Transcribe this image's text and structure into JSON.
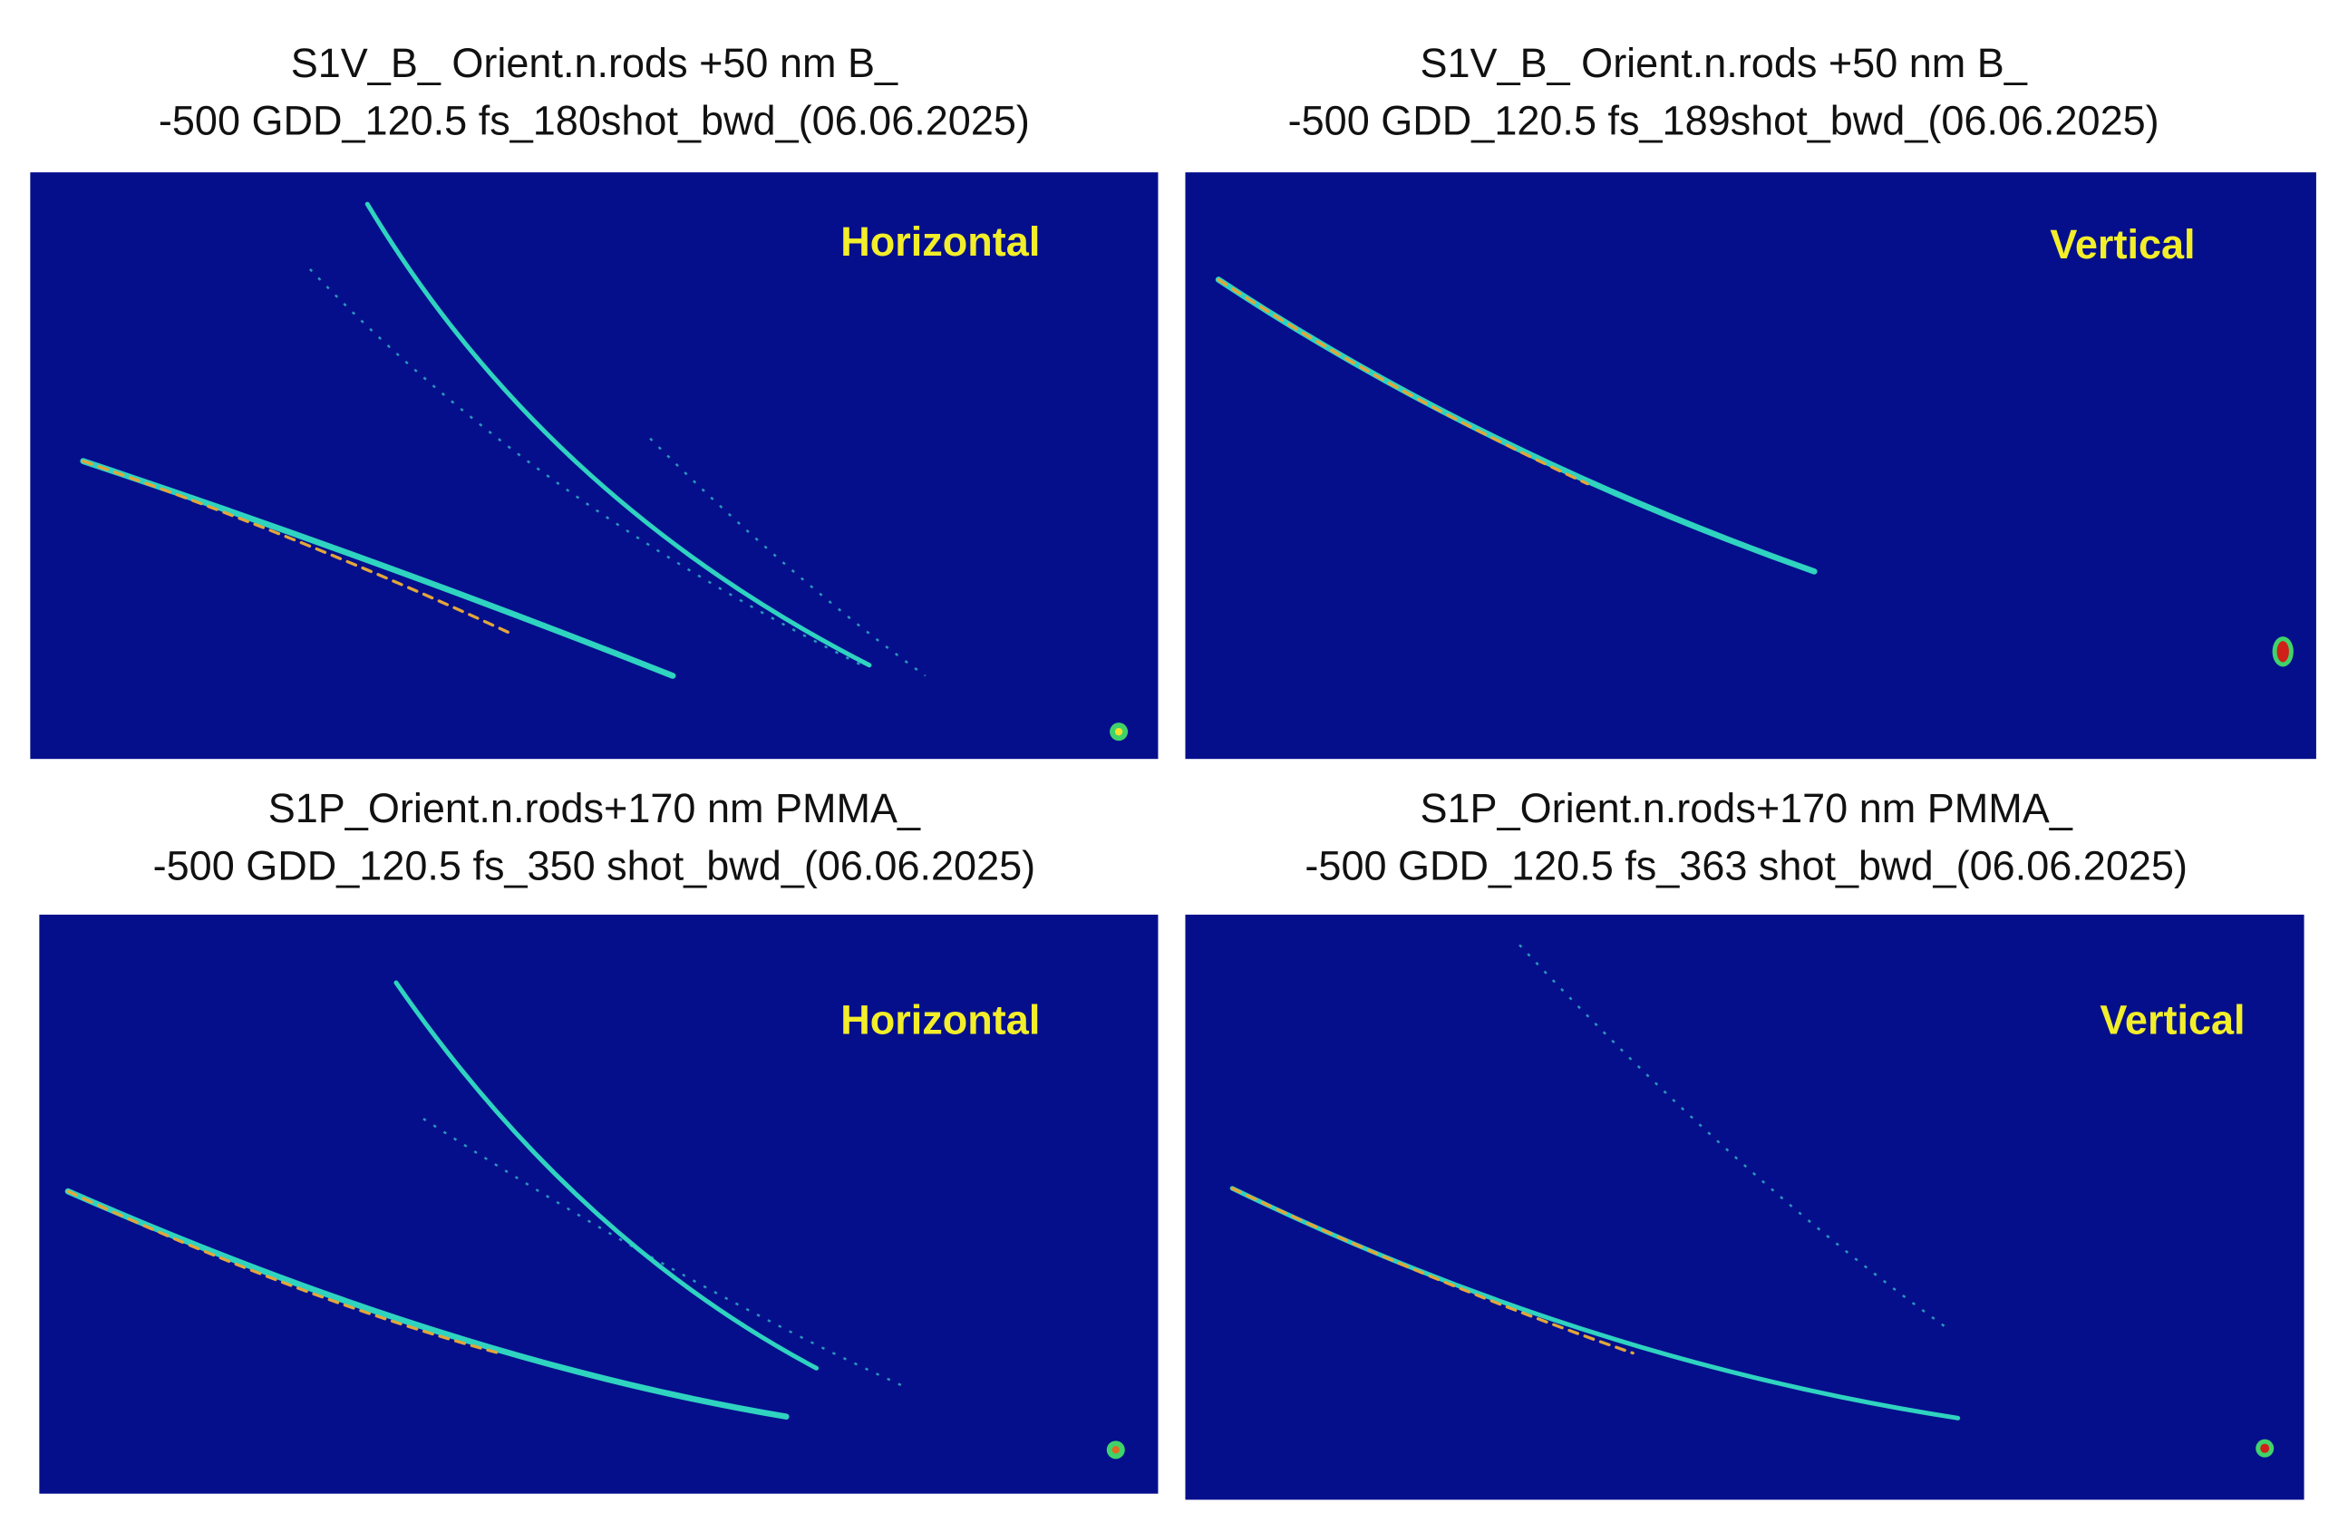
{
  "panels": [
    {
      "title_lines": [
        "S1V_B_ Orient.n.rods +50 nm B_",
        "-500 GDD_120.5 fs_180shot_bwd_(06.06.2025)"
      ],
      "label": "Horizontal"
    },
    {
      "title_lines": [
        "S1V_B_ Orient.n.rods +50 nm B_",
        "-500 GDD_120.5 fs_189shot_bwd_(06.06.2025)"
      ],
      "label": "Vertical"
    },
    {
      "title_lines": [
        "S1P_Orient.n.rods+170 nm PMMA_",
        "-500 GDD_120.5 fs_350 shot_bwd_(06.06.2025)"
      ],
      "label": "Horizontal"
    },
    {
      "title_lines": [
        "S1P_Orient.n.rods+170 nm PMMA_",
        "-500 GDD_120.5 fs_363 shot_bwd_(06.06.2025)"
      ],
      "label": "Vertical"
    }
  ]
}
